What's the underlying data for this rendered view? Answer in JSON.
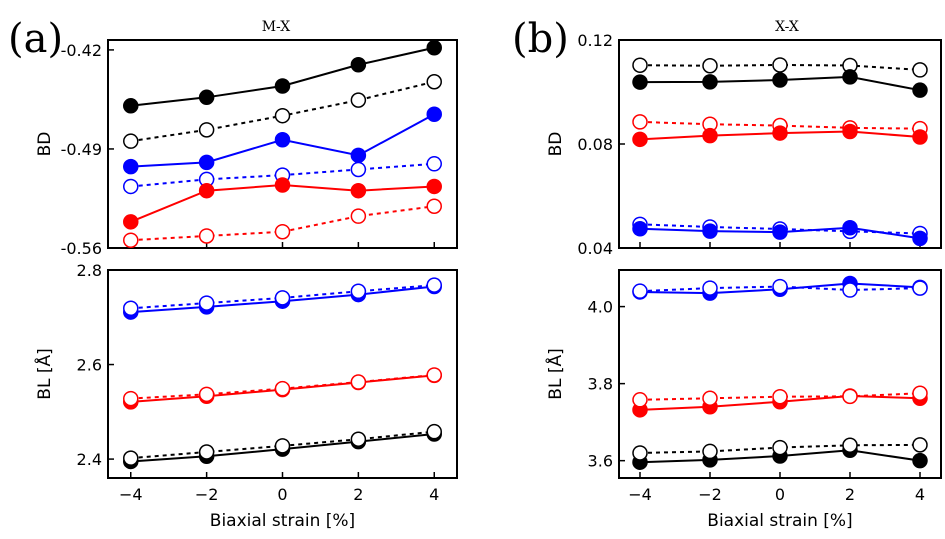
{
  "figure": {
    "panels": [
      {
        "letter": "(a)",
        "title": "M-X"
      },
      {
        "letter": "(b)",
        "title": "X-X"
      }
    ]
  },
  "colors": {
    "black": "#000000",
    "red": "#ff0000",
    "blue": "#0000ff"
  },
  "chart_data": [
    {
      "type": "line",
      "panel": "a",
      "title": "M-X",
      "xlabel": "Biaxial strain [%]",
      "ylabel": "BD",
      "x": [
        -4,
        -2,
        0,
        2,
        4
      ],
      "xlim": [
        -4.6,
        4.6
      ],
      "ylim": [
        -0.56,
        -0.413
      ],
      "yticks": [
        -0.56,
        -0.49,
        -0.42
      ],
      "ytick_labels": [
        "-0.56",
        "-0.49",
        "-0.42"
      ],
      "series": [
        {
          "color": "black",
          "filled": true,
          "dashed": false,
          "values": [
            -0.4595,
            -0.4535,
            -0.4455,
            -0.4305,
            -0.4185
          ]
        },
        {
          "color": "black",
          "filled": false,
          "dashed": true,
          "values": [
            -0.4845,
            -0.4765,
            -0.4665,
            -0.4555,
            -0.4425
          ]
        },
        {
          "color": "blue",
          "filled": true,
          "dashed": false,
          "values": [
            -0.5025,
            -0.4995,
            -0.4835,
            -0.4945,
            -0.4655
          ]
        },
        {
          "color": "blue",
          "filled": false,
          "dashed": true,
          "values": [
            -0.5165,
            -0.5115,
            -0.5085,
            -0.5045,
            -0.5005
          ]
        },
        {
          "color": "red",
          "filled": true,
          "dashed": false,
          "values": [
            -0.5415,
            -0.5195,
            -0.5155,
            -0.5195,
            -0.5165
          ]
        },
        {
          "color": "red",
          "filled": false,
          "dashed": true,
          "values": [
            -0.5545,
            -0.5515,
            -0.5485,
            -0.5375,
            -0.5305
          ]
        }
      ]
    },
    {
      "type": "line",
      "panel": "a",
      "xlabel": "Biaxial strain [%]",
      "ylabel": "BL [Å]",
      "x": [
        -4,
        -2,
        0,
        2,
        4
      ],
      "xlim": [
        -4.6,
        4.6
      ],
      "ylim": [
        2.36,
        2.8
      ],
      "yticks": [
        2.4,
        2.6,
        2.8
      ],
      "ytick_labels": [
        "2.4",
        "2.6",
        "2.8"
      ],
      "xticks": [
        -4,
        -2,
        0,
        2,
        4
      ],
      "xtick_labels": [
        "−4",
        "−2",
        "0",
        "2",
        "4"
      ],
      "series": [
        {
          "color": "blue",
          "filled": true,
          "dashed": false,
          "values": [
            2.711,
            2.722,
            2.734,
            2.748,
            2.765
          ]
        },
        {
          "color": "blue",
          "filled": false,
          "dashed": true,
          "values": [
            2.719,
            2.73,
            2.741,
            2.755,
            2.768
          ]
        },
        {
          "color": "red",
          "filled": true,
          "dashed": false,
          "values": [
            2.521,
            2.533,
            2.547,
            2.562,
            2.577
          ]
        },
        {
          "color": "red",
          "filled": false,
          "dashed": true,
          "values": [
            2.528,
            2.537,
            2.549,
            2.563,
            2.578
          ]
        },
        {
          "color": "black",
          "filled": true,
          "dashed": false,
          "values": [
            2.395,
            2.406,
            2.421,
            2.437,
            2.453
          ]
        },
        {
          "color": "black",
          "filled": false,
          "dashed": true,
          "values": [
            2.402,
            2.415,
            2.428,
            2.442,
            2.458
          ]
        }
      ]
    },
    {
      "type": "line",
      "panel": "b",
      "title": "X-X",
      "xlabel": "Biaxial strain [%]",
      "ylabel": "BD",
      "x": [
        -4,
        -2,
        0,
        2,
        4
      ],
      "xlim": [
        -4.6,
        4.6
      ],
      "ylim": [
        0.04,
        0.12
      ],
      "yticks": [
        0.04,
        0.08,
        0.12
      ],
      "ytick_labels": [
        "0.04",
        "0.08",
        "0.12"
      ],
      "series": [
        {
          "color": "black",
          "filled": false,
          "dashed": true,
          "values": [
            0.1103,
            0.1101,
            0.1104,
            0.1102,
            0.1085
          ]
        },
        {
          "color": "black",
          "filled": true,
          "dashed": false,
          "values": [
            0.1038,
            0.1039,
            0.1046,
            0.1058,
            0.1007
          ]
        },
        {
          "color": "red",
          "filled": false,
          "dashed": true,
          "values": [
            0.0885,
            0.0876,
            0.0871,
            0.0862,
            0.0859
          ]
        },
        {
          "color": "red",
          "filled": true,
          "dashed": false,
          "values": [
            0.0818,
            0.0832,
            0.0842,
            0.0848,
            0.0827
          ]
        },
        {
          "color": "blue",
          "filled": false,
          "dashed": true,
          "values": [
            0.0491,
            0.0481,
            0.0473,
            0.0464,
            0.0456
          ]
        },
        {
          "color": "blue",
          "filled": true,
          "dashed": false,
          "values": [
            0.0474,
            0.0465,
            0.0461,
            0.0478,
            0.0437
          ]
        }
      ]
    },
    {
      "type": "line",
      "panel": "b",
      "xlabel": "Biaxial strain [%]",
      "ylabel": "BL [Å]",
      "x": [
        -4,
        -2,
        0,
        2,
        4
      ],
      "xlim": [
        -4.6,
        4.6
      ],
      "ylim": [
        3.555,
        4.095
      ],
      "yticks": [
        3.6,
        3.8,
        4.0
      ],
      "ytick_labels": [
        "3.6",
        "3.8",
        "4.0"
      ],
      "xticks": [
        -4,
        -2,
        0,
        2,
        4
      ],
      "xtick_labels": [
        "−4",
        "−2",
        "0",
        "2",
        "4"
      ],
      "series": [
        {
          "color": "blue",
          "filled": true,
          "dashed": false,
          "values": [
            4.038,
            4.035,
            4.045,
            4.06,
            4.05
          ]
        },
        {
          "color": "blue",
          "filled": false,
          "dashed": true,
          "values": [
            4.04,
            4.048,
            4.052,
            4.043,
            4.048
          ]
        },
        {
          "color": "red",
          "filled": true,
          "dashed": false,
          "values": [
            3.732,
            3.74,
            3.753,
            3.768,
            3.762
          ]
        },
        {
          "color": "red",
          "filled": false,
          "dashed": true,
          "values": [
            3.758,
            3.762,
            3.766,
            3.767,
            3.775
          ]
        },
        {
          "color": "black",
          "filled": true,
          "dashed": false,
          "values": [
            3.596,
            3.602,
            3.612,
            3.627,
            3.6
          ]
        },
        {
          "color": "black",
          "filled": false,
          "dashed": true,
          "values": [
            3.62,
            3.624,
            3.634,
            3.64,
            3.641
          ]
        }
      ]
    }
  ]
}
